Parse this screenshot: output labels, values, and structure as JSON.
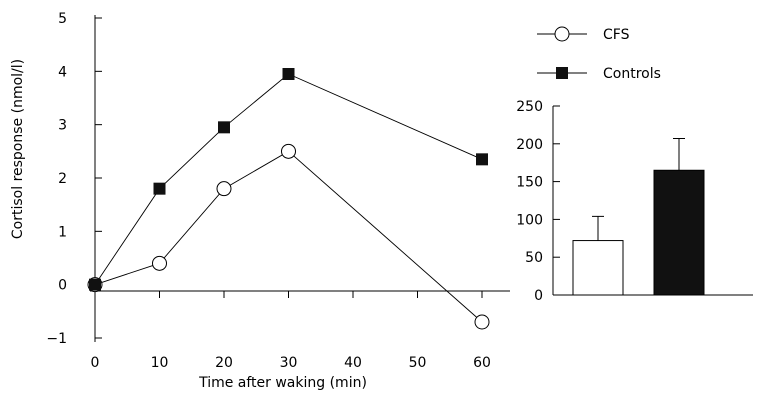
{
  "chart_data": [
    {
      "type": "line",
      "xlabel": "Time after waking (min)",
      "ylabel": "Cortisol response (nmol/l)",
      "x": [
        0,
        10,
        20,
        30,
        60
      ],
      "x_tick_labels": [
        "0",
        "10",
        "20",
        "30",
        "40",
        "50",
        "60"
      ],
      "y_tick_labels": [
        "−1",
        "0",
        "1",
        "2",
        "3",
        "4",
        "5"
      ],
      "ylim": [
        -1,
        5
      ],
      "grid": false,
      "legend_position": "top-right",
      "series": [
        {
          "name": "CFS",
          "marker": "open-circle",
          "values": [
            0,
            0.4,
            1.8,
            2.5,
            -0.7
          ]
        },
        {
          "name": "Controls",
          "marker": "filled-square",
          "values": [
            0,
            1.8,
            2.95,
            3.95,
            2.35
          ]
        }
      ]
    },
    {
      "type": "bar",
      "categories": [
        "CFS",
        "Controls"
      ],
      "values": [
        72,
        165
      ],
      "errors": [
        32,
        42
      ],
      "bar_colors": [
        "#ffffff",
        "#111111"
      ],
      "y_tick_labels": [
        "0",
        "50",
        "100",
        "150",
        "200",
        "250"
      ],
      "ylim": [
        0,
        250
      ],
      "grid": false
    }
  ]
}
